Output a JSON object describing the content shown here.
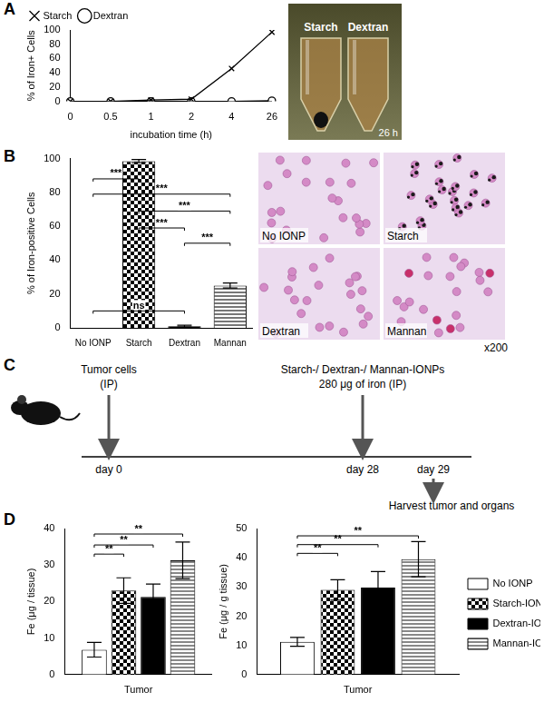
{
  "panel_labels": [
    "A",
    "B",
    "C",
    "D"
  ],
  "chart_data": [
    {
      "type": "line",
      "categories": [
        "0",
        "0.5",
        "1",
        "2",
        "4",
        "26"
      ],
      "x_label": "incubation time (h)",
      "y_label": "% of Iron+ Cells",
      "ylim": [
        0,
        100
      ],
      "yticks": [
        0,
        20,
        40,
        60,
        80,
        100
      ],
      "grid": false,
      "legend": "upper left",
      "series": [
        {
          "name": "Starch",
          "color": "#000000",
          "marker": "x",
          "values": [
            0,
            0,
            2,
            3,
            46,
            97
          ]
        },
        {
          "name": "Dextran",
          "color": "#000000",
          "marker": "o",
          "values": [
            0,
            0,
            0,
            0,
            0,
            1
          ]
        }
      ]
    },
    {
      "type": "bar",
      "categories": [
        "No IONP",
        "Starch",
        "Dextran",
        "Mannan"
      ],
      "values": [
        0,
        98.5,
        1,
        25
      ],
      "errors": [
        0,
        1,
        0.5,
        1.5
      ],
      "colors": [
        "#ffffff",
        "#000000",
        "#000000",
        "#777777"
      ],
      "y_label": "% of Iron-positive Cells",
      "ylim": [
        0,
        100
      ],
      "yticks": [
        0,
        20,
        40,
        60,
        80,
        100
      ],
      "grid": false,
      "significance": [
        {
          "from": "No IONP",
          "to": "Starch",
          "y": 88,
          "label": "***"
        },
        {
          "from": "No IONP",
          "to": "Mannan",
          "y": 79,
          "label": "***"
        },
        {
          "from": "Starch",
          "to": "Mannan",
          "y": 69,
          "label": "***"
        },
        {
          "from": "Starch",
          "to": "Dextran",
          "y": 59,
          "label": "***"
        },
        {
          "from": "Dextran",
          "to": "Mannan",
          "y": 50,
          "label": "***"
        },
        {
          "from": "No IONP",
          "to": "Dextran",
          "y": 10,
          "label": "ns"
        }
      ]
    },
    {
      "type": "bar",
      "categories": [
        "Tumor"
      ],
      "y_label": "Fe (μg / tissue)",
      "ylim": [
        0,
        40
      ],
      "yticks": [
        0,
        10,
        20,
        30,
        40
      ],
      "grid": false,
      "series": [
        {
          "name": "No IONP",
          "color": "#ffffff",
          "values": [
            6.8
          ],
          "errors": [
            2
          ]
        },
        {
          "name": "Starch-IONP",
          "color": "#000000",
          "values": [
            23
          ],
          "errors": [
            3.5
          ]
        },
        {
          "name": "Dextran-IONP",
          "color": "#000000",
          "values": [
            21.3
          ],
          "errors": [
            3.5
          ]
        },
        {
          "name": "Mannan-IONP",
          "color": "#888888",
          "values": [
            31.3
          ],
          "errors": [
            5
          ]
        }
      ],
      "significance": [
        {
          "from": "No IONP",
          "to": "Starch-IONP",
          "y": 33,
          "label": "**"
        },
        {
          "from": "No IONP",
          "to": "Dextran-IONP",
          "y": 35.5,
          "label": "**"
        },
        {
          "from": "No IONP",
          "to": "Mannan-IONP",
          "y": 38.5,
          "label": "**"
        }
      ]
    },
    {
      "type": "bar",
      "categories": [
        "Tumor"
      ],
      "y_label": "Fe (μg / g tissue)",
      "ylim": [
        0,
        50
      ],
      "yticks": [
        0,
        10,
        20,
        30,
        40,
        50
      ],
      "grid": false,
      "legend": "right",
      "series": [
        {
          "name": "No IONP",
          "color": "#ffffff",
          "values": [
            11.2
          ],
          "errors": [
            1.5
          ]
        },
        {
          "name": "Starch-IONP",
          "color": "#000000",
          "values": [
            29
          ],
          "errors": [
            3.5
          ]
        },
        {
          "name": "Dextran-IONP",
          "color": "#000000",
          "values": [
            29.8
          ],
          "errors": [
            5.5
          ]
        },
        {
          "name": "Mannan-IONP",
          "color": "#888888",
          "values": [
            39.5
          ],
          "errors": [
            6
          ]
        }
      ],
      "significance": [
        {
          "from": "No IONP",
          "to": "Starch-IONP",
          "y": 41.5,
          "label": "**"
        },
        {
          "from": "No IONP",
          "to": "Dextran-IONP",
          "y": 44.5,
          "label": "**"
        },
        {
          "from": "No IONP",
          "to": "Mannan-IONP",
          "y": 47.5,
          "label": "**"
        }
      ]
    }
  ],
  "photo_A": {
    "labels": [
      "Starch",
      "Dextran"
    ],
    "time": "26 h"
  },
  "micrographs_B": {
    "panels": [
      "No IONP",
      "Starch",
      "Dextran",
      "Mannan"
    ],
    "magnification": "x200"
  },
  "timeline_C": {
    "events": [
      {
        "text": [
          "Tumor cells",
          "(IP)"
        ],
        "day": "day 0"
      },
      {
        "text": [
          "Starch-/ Dextran-/ Mannan-IONPs",
          "280 μg of iron (IP)"
        ],
        "day": "day 28"
      },
      {
        "day": "day 29",
        "note": "Harvest tumor and organs"
      }
    ]
  }
}
